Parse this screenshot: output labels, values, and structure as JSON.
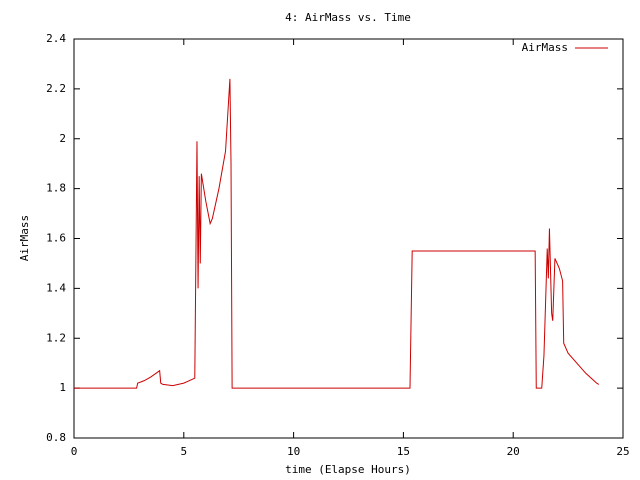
{
  "chart_data": {
    "type": "line",
    "title": "4: AirMass vs. Time",
    "xlabel": "time (Elapse Hours)",
    "ylabel": "AirMass",
    "xlim": [
      0,
      25
    ],
    "ylim": [
      0.8,
      2.4
    ],
    "xticks": [
      0,
      5,
      10,
      15,
      20,
      25
    ],
    "yticks": [
      0.8,
      1,
      1.2,
      1.4,
      1.6,
      1.8,
      2,
      2.2,
      2.4
    ],
    "legend": "top-right",
    "grid": false,
    "x": [
      0,
      2.85,
      2.9,
      3.2,
      3.5,
      3.9,
      3.95,
      4.05,
      4.5,
      5,
      5.5,
      5.6,
      5.65,
      5.7,
      5.75,
      5.8,
      6.0,
      6.2,
      6.3,
      6.6,
      6.9,
      7.1,
      7.15,
      7.2,
      15.3,
      15.4,
      21.0,
      21.05,
      21.3,
      21.4,
      21.55,
      21.6,
      21.65,
      21.75,
      21.8,
      21.9,
      22.1,
      22.25,
      22.3,
      22.5,
      22.9,
      23.3,
      23.8,
      23.9
    ],
    "series": [
      {
        "name": "AirMass",
        "color": "#cc0000",
        "values": [
          1,
          1,
          1.02,
          1.03,
          1.045,
          1.07,
          1.02,
          1.015,
          1.01,
          1.02,
          1.04,
          1.99,
          1.4,
          1.85,
          1.5,
          1.86,
          1.75,
          1.66,
          1.68,
          1.8,
          1.95,
          2.24,
          1.9,
          1.0,
          1.0,
          1.55,
          1.55,
          1.0,
          1.0,
          1.13,
          1.56,
          1.44,
          1.64,
          1.3,
          1.27,
          1.52,
          1.48,
          1.43,
          1.18,
          1.14,
          1.1,
          1.06,
          1.02,
          1.015
        ]
      }
    ]
  }
}
